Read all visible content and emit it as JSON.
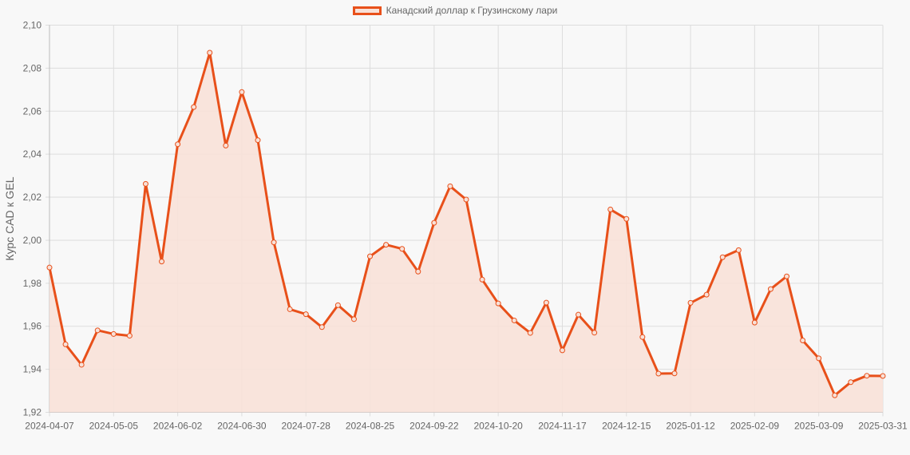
{
  "legend": {
    "label": "Канадский доллар к Грузинскому лари"
  },
  "colors": {
    "line": "#e8501a",
    "fill": "#f8e1d8",
    "grid": "#dddddd",
    "axis": "#bbbbbb",
    "background": "#f8f8f8"
  },
  "chart_data": {
    "type": "area",
    "title": "",
    "legend": [
      "Канадский доллар к Грузинскому лари"
    ],
    "legend_position": "top",
    "xlabel": "",
    "ylabel": "Курс CAD к GEL",
    "ylim": [
      1.92,
      2.1
    ],
    "y_ticks": [
      "2,10",
      "2,08",
      "2,06",
      "2,04",
      "2,02",
      "2,00",
      "1,98",
      "1,96",
      "1,94",
      "1,92"
    ],
    "x_tick_labels": [
      "2024-04-07",
      "2024-05-05",
      "2024-06-02",
      "2024-06-30",
      "2024-07-28",
      "2024-08-25",
      "2024-09-22",
      "2024-10-20",
      "2024-11-17",
      "2024-12-15",
      "2025-01-12",
      "2025-02-09",
      "2025-03-09",
      "2025-03-31"
    ],
    "grid": true,
    "x": [
      "2024-04-07",
      "2024-04-14",
      "2024-04-21",
      "2024-04-28",
      "2024-05-05",
      "2024-05-12",
      "2024-05-19",
      "2024-05-26",
      "2024-06-02",
      "2024-06-09",
      "2024-06-16",
      "2024-06-23",
      "2024-06-30",
      "2024-07-07",
      "2024-07-14",
      "2024-07-21",
      "2024-07-28",
      "2024-08-04",
      "2024-08-11",
      "2024-08-18",
      "2024-08-25",
      "2024-09-01",
      "2024-09-08",
      "2024-09-15",
      "2024-09-22",
      "2024-09-29",
      "2024-10-06",
      "2024-10-13",
      "2024-10-20",
      "2024-10-27",
      "2024-11-03",
      "2024-11-10",
      "2024-11-17",
      "2024-11-24",
      "2024-12-01",
      "2024-12-08",
      "2024-12-15",
      "2024-12-22",
      "2024-12-29",
      "2025-01-05",
      "2025-01-12",
      "2025-01-19",
      "2025-01-26",
      "2025-02-02",
      "2025-02-09",
      "2025-02-16",
      "2025-02-23",
      "2025-03-02",
      "2025-03-09",
      "2025-03-16",
      "2025-03-23",
      "2025-03-30",
      "2025-03-31"
    ],
    "series": [
      {
        "name": "Канадский доллар к Грузинскому лари",
        "values": [
          1.9873,
          1.9516,
          1.9421,
          1.9581,
          1.9564,
          1.9556,
          2.0262,
          1.9901,
          2.0446,
          2.0619,
          2.0872,
          2.044,
          2.0689,
          2.0465,
          1.999,
          1.9679,
          1.9656,
          1.9596,
          1.9698,
          1.9633,
          1.9925,
          1.9979,
          1.996,
          1.9854,
          2.0081,
          2.0251,
          2.0189,
          1.9817,
          1.9706,
          1.9627,
          1.9569,
          1.971,
          1.9488,
          1.9654,
          1.957,
          2.0143,
          2.0099,
          1.955,
          1.938,
          1.9381,
          1.9709,
          1.9747,
          1.9921,
          1.9954,
          1.9617,
          1.9773,
          1.9832,
          1.9534,
          1.9451,
          1.9279,
          1.934,
          1.937,
          1.9369
        ]
      }
    ]
  }
}
